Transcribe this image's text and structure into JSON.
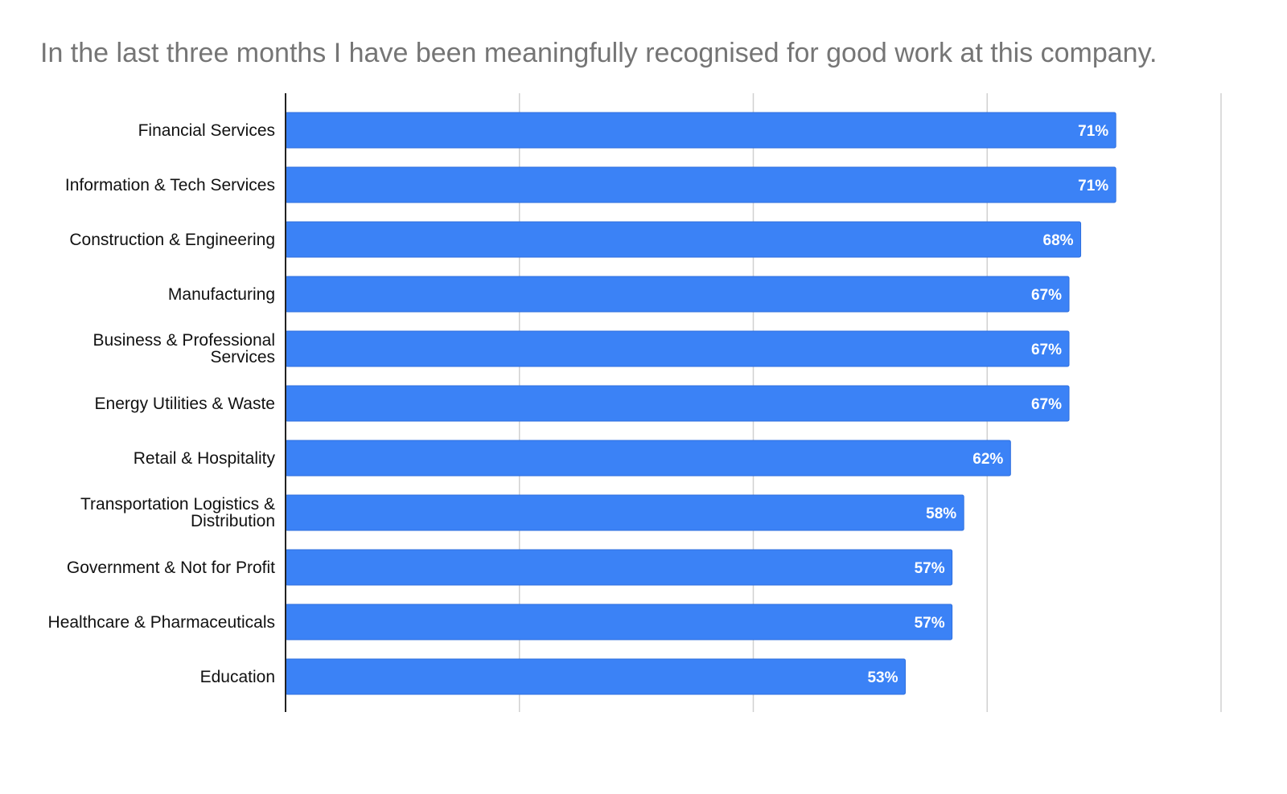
{
  "chart_data": {
    "type": "bar",
    "orientation": "horizontal",
    "title": "In the last three months I have been meaningfully recognised for good work at this company.",
    "xlabel": "",
    "ylabel": "",
    "categories": [
      "Financial Services",
      "Information & Tech Services",
      "Construction & Engineering",
      "Manufacturing",
      "Business & Professional Services",
      "Energy Utilities & Waste",
      "Retail & Hospitality",
      "Transportation Logistics & Distribution",
      "Government & Not for Profit",
      "Healthcare & Pharmaceuticals",
      "Education"
    ],
    "category_lines": [
      [
        "Financial Services"
      ],
      [
        "Information & Tech Services"
      ],
      [
        "Construction & Engineering"
      ],
      [
        "Manufacturing"
      ],
      [
        "Business & Professional",
        "Services"
      ],
      [
        "Energy Utilities & Waste"
      ],
      [
        "Retail & Hospitality"
      ],
      [
        "Transportation Logistics &",
        "Distribution"
      ],
      [
        "Government & Not for Profit"
      ],
      [
        "Healthcare & Pharmaceuticals"
      ],
      [
        "Education"
      ]
    ],
    "values": [
      71,
      71,
      68,
      67,
      67,
      67,
      62,
      58,
      57,
      57,
      53
    ],
    "value_labels": [
      "71%",
      "71%",
      "68%",
      "67%",
      "67%",
      "67%",
      "62%",
      "58%",
      "57%",
      "57%",
      "53%"
    ],
    "xlim": [
      0,
      80
    ],
    "x_gridlines": [
      0,
      20,
      40,
      60,
      80
    ],
    "tick_labels_shown": false,
    "legend": "none",
    "grid": true,
    "colors": {
      "bar": "#3b82f6",
      "bar_border": "#2f6fde",
      "title": "#757575",
      "gridline": "#d0d0d0",
      "axis": "#222222",
      "label": "#111111",
      "value_label": "#ffffff"
    }
  }
}
